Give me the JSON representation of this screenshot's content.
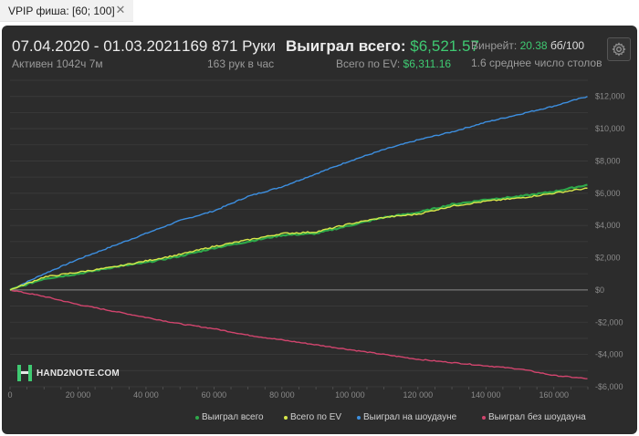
{
  "tab": {
    "label": "VPIP фиша: [60; 100]",
    "close": "✕"
  },
  "header": {
    "date_range": "07.04.2020 - 01.03.2021",
    "active": "Активен 1042ч 7м",
    "hands": "169 871 Руки",
    "hands_per_hour": "163 рук в час",
    "won_label": "Выиграл всего:",
    "won_value": "$6,521.57",
    "ev_label": "Всего по EV:",
    "ev_value": "$6,311.16",
    "winrate_label": "Винрейт:",
    "winrate_value": "20.38",
    "winrate_unit": "бб/100",
    "tables": "1.6 среднее число столов"
  },
  "logo": {
    "text": "HAND2NOTE.COM",
    "icon": "h2n-logo-icon"
  },
  "colors": {
    "panel_bg": "#2c2c2c",
    "won": "#2ea84a",
    "ev": "#d8e84a",
    "showdown": "#3d8fe0",
    "nonshowdown": "#d2456e",
    "accent_green": "#3fca72"
  },
  "chart_data": {
    "type": "line",
    "xlim": [
      0,
      170000
    ],
    "ylim": [
      -6000,
      13000
    ],
    "x_ticks": [
      0,
      20000,
      40000,
      60000,
      80000,
      100000,
      120000,
      140000,
      160000
    ],
    "x_tick_labels": [
      "0",
      "20 000",
      "40 000",
      "60 000",
      "80 000",
      "100 000",
      "120 000",
      "140 000",
      "160 000"
    ],
    "y_ticks": [
      12000,
      10000,
      8000,
      6000,
      4000,
      2000,
      0,
      -2000,
      -4000,
      -6000
    ],
    "y_tick_labels": [
      "$12,000",
      "$10,000",
      "$8,000",
      "$6,000",
      "$4,000",
      "$2,000",
      "$0",
      "-$2,000",
      "-$4,000",
      "-$6,000"
    ],
    "grid": true,
    "legend_position": "bottom-right",
    "x": [
      0,
      10000,
      20000,
      30000,
      40000,
      50000,
      60000,
      70000,
      80000,
      90000,
      100000,
      110000,
      120000,
      130000,
      140000,
      150000,
      160000,
      169871
    ],
    "series": [
      {
        "name": "Выиграл всего",
        "color": "#2ea84a",
        "values": [
          0,
          700,
          1000,
          1400,
          1700,
          2100,
          2600,
          3000,
          3400,
          3500,
          4000,
          4500,
          4800,
          5300,
          5600,
          5800,
          6100,
          6521
        ]
      },
      {
        "name": "Всего по EV",
        "color": "#d8e84a",
        "values": [
          0,
          800,
          1100,
          1400,
          1800,
          2200,
          2700,
          3100,
          3500,
          3600,
          4100,
          4500,
          4700,
          5200,
          5500,
          5700,
          6000,
          6311
        ]
      },
      {
        "name": "Выиграл на шоудауне",
        "color": "#3d8fe0",
        "values": [
          0,
          1000,
          1900,
          2700,
          3500,
          4300,
          4900,
          5800,
          6400,
          7200,
          8000,
          8700,
          9300,
          9800,
          10400,
          10900,
          11400,
          12000
        ]
      },
      {
        "name": "Выиграл без шоудауна",
        "color": "#d2456e",
        "values": [
          0,
          -400,
          -900,
          -1300,
          -1700,
          -2100,
          -2400,
          -2800,
          -3100,
          -3400,
          -3700,
          -4000,
          -4300,
          -4500,
          -4700,
          -4900,
          -5300,
          -5500
        ]
      }
    ]
  }
}
